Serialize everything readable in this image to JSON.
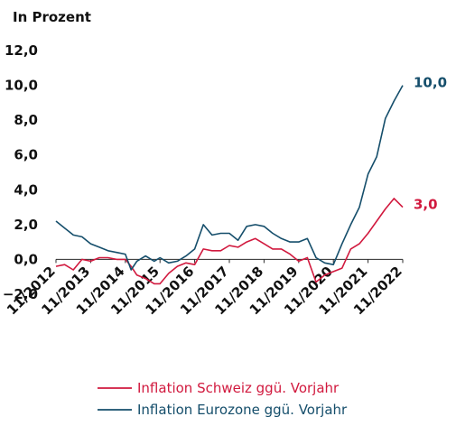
{
  "chart_data": {
    "type": "line",
    "unit_label": "In Prozent",
    "ylim": [
      -2.0,
      12.0
    ],
    "yticks": [
      "12,0",
      "10,0",
      "8,0",
      "6,0",
      "4,0",
      "2,0",
      "0,0",
      "−2,0"
    ],
    "ytick_values": [
      12,
      10,
      8,
      6,
      4,
      2,
      0,
      -2
    ],
    "xtick_labels": [
      "11/2012",
      "11/2013",
      "11/2014",
      "11/2015",
      "11/2016",
      "11/2017",
      "11/2018",
      "11/2019",
      "11/2020",
      "11/2021",
      "11/2022"
    ],
    "x_start": "2012-11",
    "x_end": "2022-11",
    "grid": false,
    "legend_position": "bottom",
    "series": [
      {
        "name": "Inflation Schweiz ggü. Vorjahr",
        "color": "#d1193e",
        "end_label": "3,0",
        "x": [
          "2012-11",
          "2013-02",
          "2013-05",
          "2013-08",
          "2013-11",
          "2014-02",
          "2014-05",
          "2014-08",
          "2014-11",
          "2015-01",
          "2015-03",
          "2015-06",
          "2015-09",
          "2015-11",
          "2016-02",
          "2016-05",
          "2016-08",
          "2016-11",
          "2017-02",
          "2017-05",
          "2017-08",
          "2017-11",
          "2018-02",
          "2018-05",
          "2018-08",
          "2018-11",
          "2019-02",
          "2019-05",
          "2019-08",
          "2019-11",
          "2020-02",
          "2020-05",
          "2020-08",
          "2020-11",
          "2021-02",
          "2021-05",
          "2021-08",
          "2021-11",
          "2022-02",
          "2022-05",
          "2022-08",
          "2022-11"
        ],
        "values": [
          -0.4,
          -0.3,
          -0.6,
          0.0,
          -0.1,
          0.1,
          0.1,
          0.0,
          0.0,
          -0.4,
          -0.9,
          -1.1,
          -1.4,
          -1.4,
          -0.8,
          -0.4,
          -0.2,
          -0.3,
          0.6,
          0.5,
          0.5,
          0.8,
          0.7,
          1.0,
          1.2,
          0.9,
          0.6,
          0.6,
          0.3,
          -0.1,
          0.1,
          -1.3,
          -0.9,
          -0.7,
          -0.5,
          0.6,
          0.9,
          1.5,
          2.2,
          2.9,
          3.5,
          3.0
        ]
      },
      {
        "name": "Inflation Eurozone ggü. Vorjahr",
        "color": "#154e6b",
        "end_label": "10,0",
        "x": [
          "2012-11",
          "2013-02",
          "2013-05",
          "2013-08",
          "2013-11",
          "2014-02",
          "2014-05",
          "2014-08",
          "2014-11",
          "2015-01",
          "2015-03",
          "2015-06",
          "2015-09",
          "2015-11",
          "2016-02",
          "2016-05",
          "2016-08",
          "2016-11",
          "2017-02",
          "2017-05",
          "2017-08",
          "2017-11",
          "2018-02",
          "2018-05",
          "2018-08",
          "2018-11",
          "2019-02",
          "2019-05",
          "2019-08",
          "2019-11",
          "2020-02",
          "2020-05",
          "2020-08",
          "2020-11",
          "2021-02",
          "2021-05",
          "2021-08",
          "2021-11",
          "2022-02",
          "2022-05",
          "2022-08",
          "2022-11"
        ],
        "values": [
          2.2,
          1.8,
          1.4,
          1.3,
          0.9,
          0.7,
          0.5,
          0.4,
          0.3,
          -0.6,
          -0.1,
          0.2,
          -0.1,
          0.1,
          -0.2,
          -0.1,
          0.2,
          0.6,
          2.0,
          1.4,
          1.5,
          1.5,
          1.1,
          1.9,
          2.0,
          1.9,
          1.5,
          1.2,
          1.0,
          1.0,
          1.2,
          0.1,
          -0.2,
          -0.3,
          0.9,
          2.0,
          3.0,
          4.9,
          5.9,
          8.1,
          9.1,
          10.0
        ]
      }
    ]
  }
}
